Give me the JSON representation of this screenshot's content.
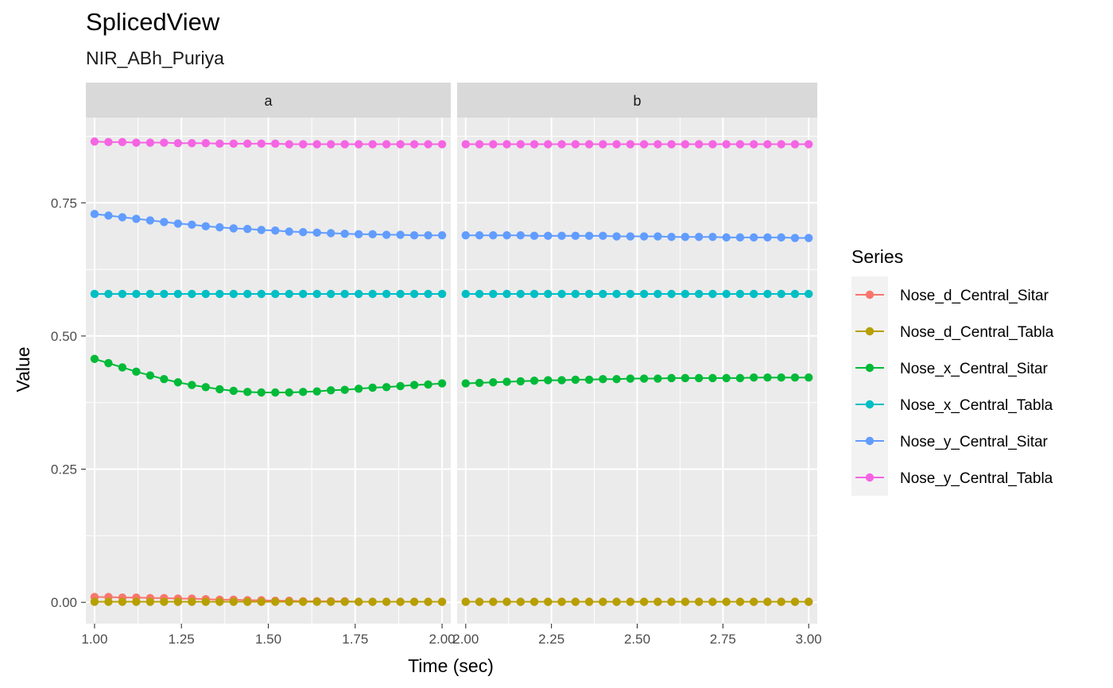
{
  "chart_data": {
    "type": "line",
    "title": "SplicedView",
    "subtitle": "NIR_ABh_Puriya",
    "xlabel": "Time (sec)",
    "ylabel": "Value",
    "ylim": [
      -0.04,
      0.91
    ],
    "yticks": [
      0.0,
      0.25,
      0.5,
      0.75
    ],
    "ytick_labels": [
      "0.00",
      "0.25",
      "0.50",
      "0.75"
    ],
    "legend": {
      "title": "Series",
      "position": "right"
    },
    "grid": true,
    "colors": {
      "Nose_d_Central_Sitar": "#F8766D",
      "Nose_d_Central_Tabla": "#B79F00",
      "Nose_x_Central_Sitar": "#00BA38",
      "Nose_x_Central_Tabla": "#00BFC4",
      "Nose_y_Central_Sitar": "#619CFF",
      "Nose_y_Central_Tabla": "#F564E3"
    },
    "panels": [
      {
        "label": "a",
        "xlim": [
          0.975,
          2.025
        ],
        "xticks": [
          1.0,
          1.25,
          1.5,
          1.75,
          2.0
        ],
        "xtick_labels": [
          "1.00",
          "1.25",
          "1.50",
          "1.75",
          "2.00"
        ],
        "x": [
          1.0,
          1.04,
          1.08,
          1.12,
          1.16,
          1.2,
          1.24,
          1.28,
          1.32,
          1.36,
          1.4,
          1.44,
          1.48,
          1.52,
          1.56,
          1.6,
          1.64,
          1.68,
          1.72,
          1.76,
          1.8,
          1.84,
          1.88,
          1.92,
          1.96,
          2.0
        ],
        "series": [
          {
            "name": "Nose_d_Central_Sitar",
            "values": [
              0.01,
              0.01,
              0.009,
              0.009,
              0.008,
              0.008,
              0.007,
              0.007,
              0.006,
              0.005,
              0.005,
              0.004,
              0.004,
              0.003,
              0.003,
              0.002,
              0.002,
              0.002,
              0.002,
              0.001,
              0.001,
              0.001,
              0.001,
              0.001,
              0.001,
              0.001
            ]
          },
          {
            "name": "Nose_d_Central_Tabla",
            "values": [
              0.001,
              0.001,
              0.001,
              0.001,
              0.001,
              0.001,
              0.001,
              0.001,
              0.001,
              0.001,
              0.001,
              0.001,
              0.001,
              0.001,
              0.001,
              0.001,
              0.001,
              0.001,
              0.001,
              0.001,
              0.001,
              0.001,
              0.001,
              0.001,
              0.001,
              0.001
            ]
          },
          {
            "name": "Nose_x_Central_Sitar",
            "values": [
              0.457,
              0.449,
              0.441,
              0.433,
              0.426,
              0.419,
              0.413,
              0.408,
              0.404,
              0.4,
              0.397,
              0.395,
              0.394,
              0.394,
              0.394,
              0.395,
              0.396,
              0.398,
              0.399,
              0.401,
              0.403,
              0.404,
              0.406,
              0.408,
              0.409,
              0.411
            ]
          },
          {
            "name": "Nose_x_Central_Tabla",
            "values": [
              0.579,
              0.579,
              0.579,
              0.579,
              0.579,
              0.579,
              0.579,
              0.579,
              0.579,
              0.579,
              0.579,
              0.579,
              0.579,
              0.579,
              0.579,
              0.579,
              0.579,
              0.579,
              0.579,
              0.579,
              0.579,
              0.579,
              0.579,
              0.579,
              0.579,
              0.579
            ]
          },
          {
            "name": "Nose_y_Central_Sitar",
            "values": [
              0.729,
              0.726,
              0.723,
              0.72,
              0.717,
              0.714,
              0.711,
              0.709,
              0.706,
              0.704,
              0.702,
              0.701,
              0.699,
              0.698,
              0.696,
              0.695,
              0.694,
              0.693,
              0.692,
              0.691,
              0.691,
              0.69,
              0.69,
              0.689,
              0.689,
              0.689
            ]
          },
          {
            "name": "Nose_y_Central_Tabla",
            "values": [
              0.865,
              0.864,
              0.864,
              0.863,
              0.863,
              0.863,
              0.862,
              0.862,
              0.862,
              0.861,
              0.861,
              0.861,
              0.861,
              0.861,
              0.86,
              0.86,
              0.86,
              0.86,
              0.86,
              0.86,
              0.86,
              0.86,
              0.86,
              0.86,
              0.86,
              0.86
            ]
          }
        ]
      },
      {
        "label": "b",
        "xlim": [
          1.975,
          3.025
        ],
        "xticks": [
          2.0,
          2.25,
          2.5,
          2.75,
          3.0
        ],
        "xtick_labels": [
          "2.00",
          "2.25",
          "2.50",
          "2.75",
          "3.00"
        ],
        "x": [
          2.0,
          2.04,
          2.08,
          2.12,
          2.16,
          2.2,
          2.24,
          2.28,
          2.32,
          2.36,
          2.4,
          2.44,
          2.48,
          2.52,
          2.56,
          2.6,
          2.64,
          2.68,
          2.72,
          2.76,
          2.8,
          2.84,
          2.88,
          2.92,
          2.96,
          3.0
        ],
        "series": [
          {
            "name": "Nose_d_Central_Sitar",
            "values": [
              0.001,
              0.001,
              0.001,
              0.001,
              0.001,
              0.001,
              0.001,
              0.001,
              0.001,
              0.001,
              0.001,
              0.001,
              0.001,
              0.001,
              0.001,
              0.001,
              0.001,
              0.001,
              0.001,
              0.001,
              0.001,
              0.001,
              0.001,
              0.001,
              0.001,
              0.001
            ]
          },
          {
            "name": "Nose_d_Central_Tabla",
            "values": [
              0.001,
              0.001,
              0.001,
              0.001,
              0.001,
              0.001,
              0.001,
              0.001,
              0.001,
              0.001,
              0.001,
              0.001,
              0.001,
              0.001,
              0.001,
              0.001,
              0.001,
              0.001,
              0.001,
              0.001,
              0.001,
              0.001,
              0.001,
              0.001,
              0.001,
              0.001
            ]
          },
          {
            "name": "Nose_x_Central_Sitar",
            "values": [
              0.411,
              0.412,
              0.413,
              0.414,
              0.415,
              0.416,
              0.417,
              0.417,
              0.418,
              0.418,
              0.419,
              0.419,
              0.42,
              0.42,
              0.42,
              0.421,
              0.421,
              0.421,
              0.421,
              0.421,
              0.421,
              0.422,
              0.422,
              0.422,
              0.422,
              0.422
            ]
          },
          {
            "name": "Nose_x_Central_Tabla",
            "values": [
              0.579,
              0.579,
              0.579,
              0.579,
              0.579,
              0.579,
              0.579,
              0.579,
              0.579,
              0.579,
              0.579,
              0.579,
              0.579,
              0.579,
              0.579,
              0.579,
              0.579,
              0.579,
              0.579,
              0.579,
              0.579,
              0.579,
              0.579,
              0.579,
              0.579,
              0.579
            ]
          },
          {
            "name": "Nose_y_Central_Sitar",
            "values": [
              0.689,
              0.689,
              0.689,
              0.689,
              0.689,
              0.688,
              0.688,
              0.688,
              0.688,
              0.688,
              0.688,
              0.687,
              0.687,
              0.687,
              0.687,
              0.686,
              0.686,
              0.686,
              0.686,
              0.685,
              0.685,
              0.685,
              0.685,
              0.685,
              0.684,
              0.684
            ]
          },
          {
            "name": "Nose_y_Central_Tabla",
            "values": [
              0.86,
              0.86,
              0.86,
              0.86,
              0.86,
              0.86,
              0.86,
              0.86,
              0.86,
              0.86,
              0.86,
              0.86,
              0.86,
              0.86,
              0.86,
              0.86,
              0.86,
              0.86,
              0.86,
              0.86,
              0.86,
              0.86,
              0.86,
              0.86,
              0.86,
              0.86
            ]
          }
        ]
      }
    ]
  }
}
